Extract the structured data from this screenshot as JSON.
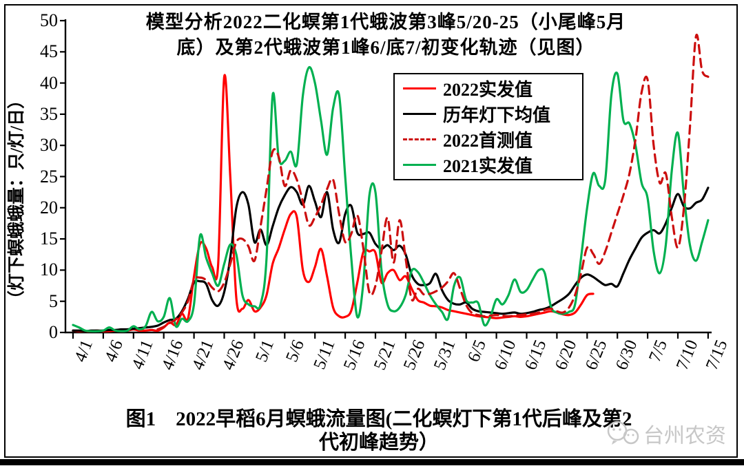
{
  "title": {
    "line1": "模型分析2022二化螟第1代蛾波第3峰5/20-25（小尾峰5月",
    "line2": "底）及第2代蛾波第1峰6/底7/初变化轨迹（见图）"
  },
  "caption": {
    "line1": "图1　2022早稻6月螟蛾流量图(二化螟灯下第1代后峰及第2",
    "line2": "代初峰趋势）"
  },
  "watermark": {
    "text": "台州农资"
  },
  "chart_data": {
    "type": "line",
    "title": "模型分析2022二化螟第1代蛾波第3峰5/20-25（小尾峰5月底）及第2代蛾波第1峰6/底7/初变化轨迹（见图）",
    "ylabel": "（灯下螟蛾蛾量：只/灯/日）",
    "ylim": [
      0,
      50
    ],
    "yticks": [
      0,
      5,
      10,
      15,
      20,
      25,
      30,
      35,
      40,
      45,
      50
    ],
    "x_unit": "date (daily, 4/1 – 7/15)",
    "xtick_labels": [
      "4/1",
      "4/6",
      "4/11",
      "4/16",
      "4/21",
      "4/26",
      "5/1",
      "5/6",
      "5/11",
      "5/16",
      "5/21",
      "5/26",
      "5/31",
      "6/5",
      "6/10",
      "6/15",
      "6/20",
      "6/25",
      "6/30",
      "7/5",
      "7/10",
      "7/15"
    ],
    "grid": false,
    "legend_position": "upper-center-right box",
    "series": [
      {
        "name": "2022实发值",
        "color": "#ff0000",
        "style": "solid",
        "start_index": 0,
        "values": [
          0.3,
          0.2,
          0.2,
          0.2,
          0.3,
          0.2,
          0.2,
          0.3,
          0.2,
          0.3,
          0.5,
          0.3,
          0.3,
          0.4,
          0.3,
          0.8,
          1.6,
          1.2,
          3.0,
          2.2,
          9.0,
          14.2,
          13.5,
          10.5,
          11.0,
          41.0,
          25.0,
          5.5,
          3.8,
          5.2,
          3.4,
          4.0,
          6.0,
          11.0,
          13.5,
          16.5,
          19.0,
          18.5,
          10.0,
          8.1,
          10.5,
          13.4,
          9.0,
          4.0,
          2.6,
          2.5,
          3.5,
          8.0,
          12.9,
          13.0,
          12.8,
          8.0,
          9.5,
          10.0,
          8.4,
          9.0,
          7.0,
          5.2,
          4.8,
          4.3,
          4.2,
          4.0,
          3.6,
          3.4,
          3.2,
          3.0,
          2.8,
          2.6,
          2.5,
          2.4,
          2.3,
          2.4,
          2.5,
          2.6,
          2.5,
          2.6,
          2.8,
          3.0,
          3.2,
          3.4,
          3.2,
          2.9,
          2.8,
          3.2,
          4.5,
          6.0,
          6.2
        ]
      },
      {
        "name": "历年灯下均值",
        "color": "#000000",
        "style": "solid",
        "start_index": 0,
        "values": [
          0.3,
          0.3,
          0.2,
          0.3,
          0.3,
          0.3,
          0.4,
          0.4,
          0.5,
          0.5,
          0.6,
          0.7,
          0.8,
          0.9,
          1.1,
          1.6,
          2.0,
          2.2,
          3.4,
          5.4,
          8.0,
          8.2,
          7.8,
          5.2,
          4.3,
          6.5,
          12.0,
          20.0,
          22.5,
          20.5,
          14.5,
          16.5,
          14.0,
          17.0,
          20.0,
          22.0,
          23.3,
          22.5,
          20.5,
          23.5,
          21.0,
          18.5,
          22.5,
          16.5,
          14.4,
          19.0,
          20.3,
          16.0,
          15.8,
          16.0,
          14.2,
          13.4,
          14.0,
          13.2,
          13.9,
          12.5,
          9.2,
          7.8,
          7.6,
          7.9,
          9.4,
          6.8,
          5.2,
          4.6,
          4.5,
          4.8,
          3.8,
          3.4,
          3.3,
          3.2,
          3.1,
          3.0,
          3.1,
          3.2,
          3.0,
          3.1,
          3.3,
          3.6,
          3.8,
          4.2,
          4.8,
          5.4,
          6.2,
          7.6,
          8.8,
          9.3,
          8.9,
          8.2,
          7.6,
          7.8,
          7.4,
          9.5,
          11.7,
          13.5,
          15.2,
          16.0,
          16.4,
          15.9,
          17.5,
          20.0,
          22.2,
          20.2,
          19.9,
          20.8,
          21.3,
          23.2
        ]
      },
      {
        "name": "2022首测值",
        "color": "#cc0f0f",
        "style": "dashed",
        "start_index": 14,
        "values": [
          0.5,
          0.9,
          1.5,
          2.1,
          3.2,
          5.0,
          8.4,
          8.8,
          8.4,
          7.2,
          6.6,
          8.0,
          11.0,
          14.5,
          15.0,
          13.8,
          11.5,
          17.0,
          23.0,
          29.0,
          28.2,
          23.5,
          26.0,
          24.5,
          21.0,
          17.2,
          18.5,
          20.5,
          23.0,
          24.5,
          19.0,
          14.5,
          15.8,
          18.8,
          13.5,
          6.4,
          7.5,
          13.0,
          18.4,
          11.2,
          18.0,
          11.8,
          5.3,
          7.0,
          6.1,
          6.2,
          6.6,
          7.2,
          8.2,
          9.5,
          7.0,
          4.4,
          3.1,
          2.8,
          2.6,
          2.7,
          2.8,
          2.7,
          2.6,
          2.7,
          2.8,
          2.9,
          3.0,
          3.2,
          3.6,
          3.8,
          3.4,
          3.2,
          4.0,
          6.0,
          9.5,
          13.6,
          12.6,
          11.0,
          13.0,
          16.0,
          19.0,
          22.0,
          25.5,
          31.0,
          38.5,
          40.5,
          30.0,
          24.0,
          25.5,
          18.5,
          13.6,
          20.0,
          33.0,
          47.5,
          42.0,
          41.0
        ]
      },
      {
        "name": "2021实发值",
        "color": "#00b050",
        "style": "solid",
        "start_index": 0,
        "values": [
          1.2,
          0.8,
          0.3,
          0.2,
          0.2,
          0.3,
          0.8,
          0.3,
          0.2,
          0.3,
          1.0,
          0.5,
          1.0,
          3.3,
          1.8,
          2.5,
          5.5,
          1.0,
          2.2,
          1.8,
          4.5,
          15.5,
          12.0,
          9.5,
          7.5,
          11.0,
          14.1,
          12.5,
          6.0,
          4.5,
          4.2,
          4.5,
          12.0,
          38.0,
          28.0,
          27.5,
          29.0,
          27.0,
          38.0,
          42.5,
          40.0,
          34.0,
          28.5,
          36.0,
          38.0,
          25.0,
          12.0,
          2.5,
          8.0,
          22.0,
          22.5,
          10.0,
          4.5,
          3.4,
          4.0,
          6.0,
          9.9,
          9.7,
          8.0,
          6.0,
          4.5,
          3.3,
          2.2,
          7.5,
          8.8,
          5.2,
          4.8,
          4.7,
          1.2,
          2.5,
          5.3,
          4.5,
          6.0,
          8.5,
          6.5,
          6.8,
          8.5,
          10.0,
          9.5,
          4.2,
          3.2,
          3.0,
          3.3,
          4.5,
          12.0,
          20.0,
          25.5,
          23.5,
          24.5,
          38.0,
          41.5,
          34.0,
          33.5,
          30.0,
          24.0,
          21.5,
          13.0,
          9.5,
          14.0,
          26.0,
          32.0,
          22.0,
          14.0,
          11.5,
          14.5,
          18.0
        ]
      }
    ]
  }
}
